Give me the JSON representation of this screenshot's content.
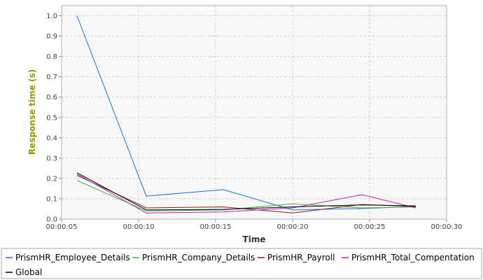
{
  "chart_data": {
    "type": "line",
    "title": "",
    "xlabel": "Time",
    "ylabel": "Response time (s)",
    "x_ticks": [
      "00:00:05",
      "00:00:10",
      "00:00:15",
      "00:00:20",
      "00:00:25",
      "00:00:30"
    ],
    "x_range_seconds": [
      5,
      30
    ],
    "ylim": [
      0,
      1.05
    ],
    "y_ticks": [
      "0.0",
      "0.1",
      "0.2",
      "0.3",
      "0.4",
      "0.5",
      "0.6",
      "0.7",
      "0.8",
      "0.9",
      "1.0"
    ],
    "grid": true,
    "legend_position": "bottom",
    "x_seconds": [
      6,
      10.5,
      15.5,
      20,
      24.5,
      28
    ],
    "series": [
      {
        "name": "PrismHR_Employee_Details",
        "color": "#1f6fc5",
        "values": [
          1.0,
          0.113,
          0.145,
          0.045,
          0.052,
          0.062
        ]
      },
      {
        "name": "PrismHR_Company_Details",
        "color": "#3cb33c",
        "values": [
          0.19,
          0.04,
          0.045,
          0.075,
          0.055,
          0.06
        ]
      },
      {
        "name": "PrismHR_Payroll",
        "color": "#8b1a1a",
        "values": [
          0.215,
          0.055,
          0.06,
          0.03,
          0.072,
          0.062
        ]
      },
      {
        "name": "PrismHR_Total_Compentation",
        "color": "#c020c0",
        "values": [
          0.222,
          0.03,
          0.035,
          0.055,
          0.12,
          0.055
        ]
      },
      {
        "name": "Global",
        "color": "#000000",
        "values": [
          0.228,
          0.045,
          0.048,
          0.06,
          0.07,
          0.065
        ]
      }
    ],
    "colors": {
      "ylabel": "#999900",
      "xlabel": "#333333",
      "plot_bg": "#f8f8f8",
      "grid": "#d0d0d0"
    }
  }
}
